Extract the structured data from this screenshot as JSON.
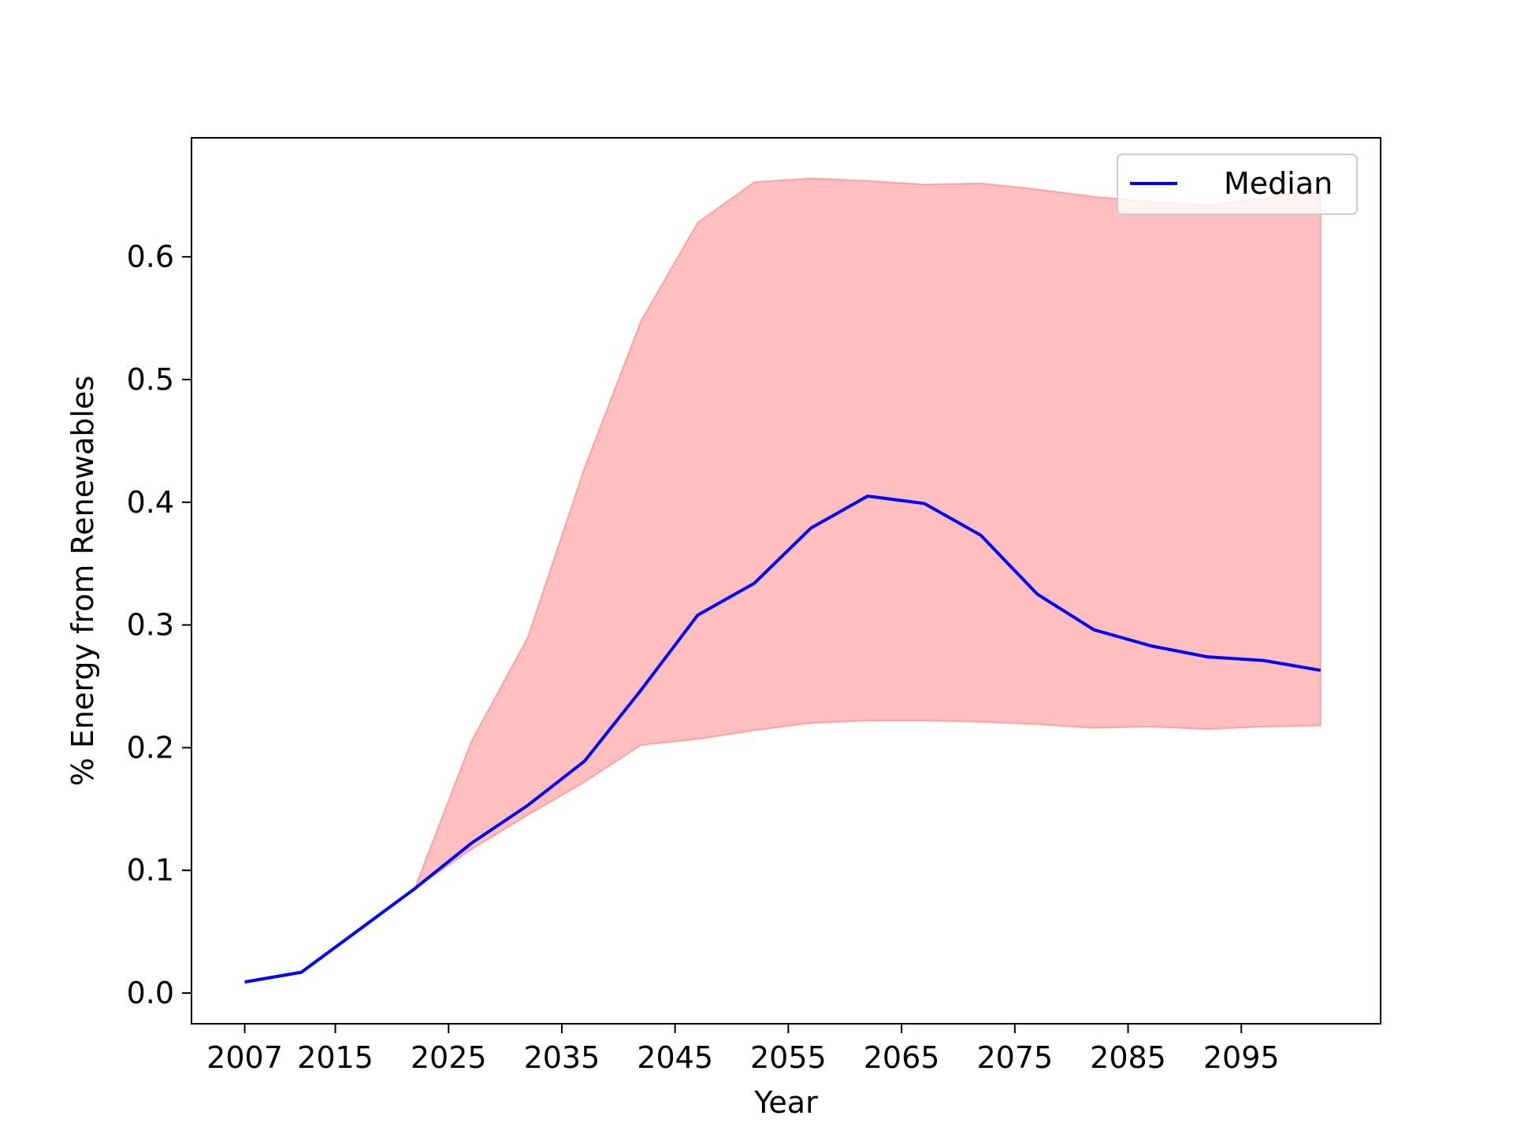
{
  "chart_data": {
    "type": "line",
    "xlabel": "Year",
    "ylabel": "% Energy from Renewables",
    "xlim": [
      2002.3,
      2107.3
    ],
    "ylim": [
      -0.025,
      0.697
    ],
    "x_ticks": [
      2007,
      2015,
      2025,
      2035,
      2045,
      2055,
      2065,
      2075,
      2085,
      2095
    ],
    "y_ticks": [
      0.0,
      0.1,
      0.2,
      0.3,
      0.4,
      0.5,
      0.6
    ],
    "y_tick_labels": [
      "0.0",
      "0.1",
      "0.2",
      "0.3",
      "0.4",
      "0.5",
      "0.6"
    ],
    "grid": false,
    "legend": {
      "position": "top-right",
      "entries": [
        "Median"
      ]
    },
    "x": [
      2007,
      2012,
      2017,
      2022,
      2027,
      2032,
      2037,
      2042,
      2047,
      2052,
      2057,
      2062,
      2067,
      2072,
      2077,
      2082,
      2087,
      2092,
      2097,
      2102
    ],
    "series": [
      {
        "name": "Median",
        "color": "#0000ff",
        "values": [
          0.009,
          0.017,
          0.051,
          0.085,
          0.122,
          0.153,
          0.189,
          0.247,
          0.308,
          0.334,
          0.379,
          0.405,
          0.399,
          0.373,
          0.325,
          0.296,
          0.283,
          0.274,
          0.271,
          0.263
        ]
      }
    ],
    "band": {
      "color": "#ff0000",
      "x": [
        2022,
        2027,
        2032,
        2037,
        2042,
        2047,
        2052,
        2057,
        2062,
        2067,
        2072,
        2077,
        2082,
        2087,
        2092,
        2097,
        2102
      ],
      "upper": [
        0.085,
        0.205,
        0.29,
        0.428,
        0.548,
        0.628,
        0.661,
        0.664,
        0.662,
        0.659,
        0.66,
        0.655,
        0.649,
        0.645,
        0.642,
        0.648,
        0.655
      ],
      "lower": [
        0.085,
        0.117,
        0.145,
        0.172,
        0.202,
        0.207,
        0.214,
        0.22,
        0.222,
        0.222,
        0.221,
        0.219,
        0.216,
        0.217,
        0.215,
        0.217,
        0.218
      ]
    }
  }
}
